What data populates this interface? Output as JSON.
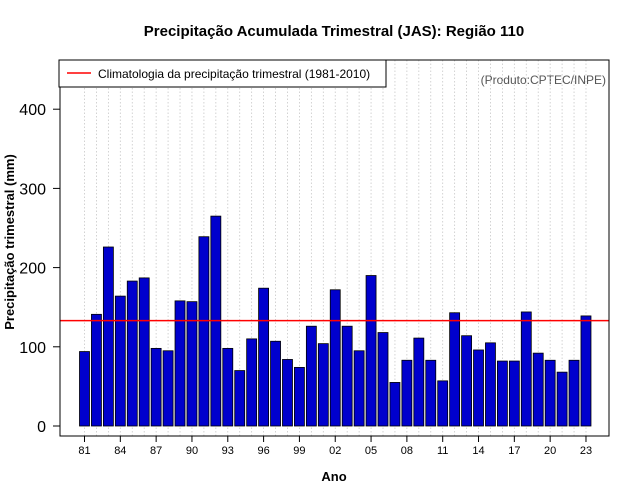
{
  "chart_data": {
    "type": "bar",
    "title": "Precipitação Acumulada Trimestral (JAS): Região 110",
    "xlabel": "Ano",
    "ylabel": "Precipitação trimestral (mm)",
    "ylim": [
      0,
      450
    ],
    "y_ticks": [
      0,
      100,
      200,
      300,
      400
    ],
    "x_tick_labels": [
      "81",
      "84",
      "87",
      "90",
      "93",
      "96",
      "99",
      "02",
      "05",
      "08",
      "11",
      "14",
      "17",
      "20",
      "23"
    ],
    "x_tick_every": 3,
    "grid": "vertical dotted, one per year",
    "categories": [
      "1981",
      "1982",
      "1983",
      "1984",
      "1985",
      "1986",
      "1987",
      "1988",
      "1989",
      "1990",
      "1991",
      "1992",
      "1993",
      "1994",
      "1995",
      "1996",
      "1997",
      "1998",
      "1999",
      "2000",
      "2001",
      "2002",
      "2003",
      "2004",
      "2005",
      "2006",
      "2007",
      "2008",
      "2009",
      "2010",
      "2011",
      "2012",
      "2013",
      "2014",
      "2015",
      "2016",
      "2017",
      "2018",
      "2019",
      "2020",
      "2021",
      "2022",
      "2023"
    ],
    "values": [
      94,
      141,
      226,
      164,
      183,
      187,
      98,
      95,
      158,
      157,
      239,
      265,
      98,
      70,
      110,
      174,
      107,
      84,
      74,
      126,
      104,
      172,
      126,
      95,
      190,
      118,
      55,
      83,
      111,
      83,
      57,
      143,
      114,
      96,
      105,
      82,
      82,
      144,
      92,
      83,
      68,
      83,
      139
    ],
    "climatology": {
      "label": "Climatologia da precipitação trimestral (1981-2010)",
      "value": 133
    },
    "bar_color": "#0000cd",
    "line_color": "#ff0000",
    "legend_position": "top-left",
    "credit": "(Produto:CPTEC/INPE)"
  }
}
